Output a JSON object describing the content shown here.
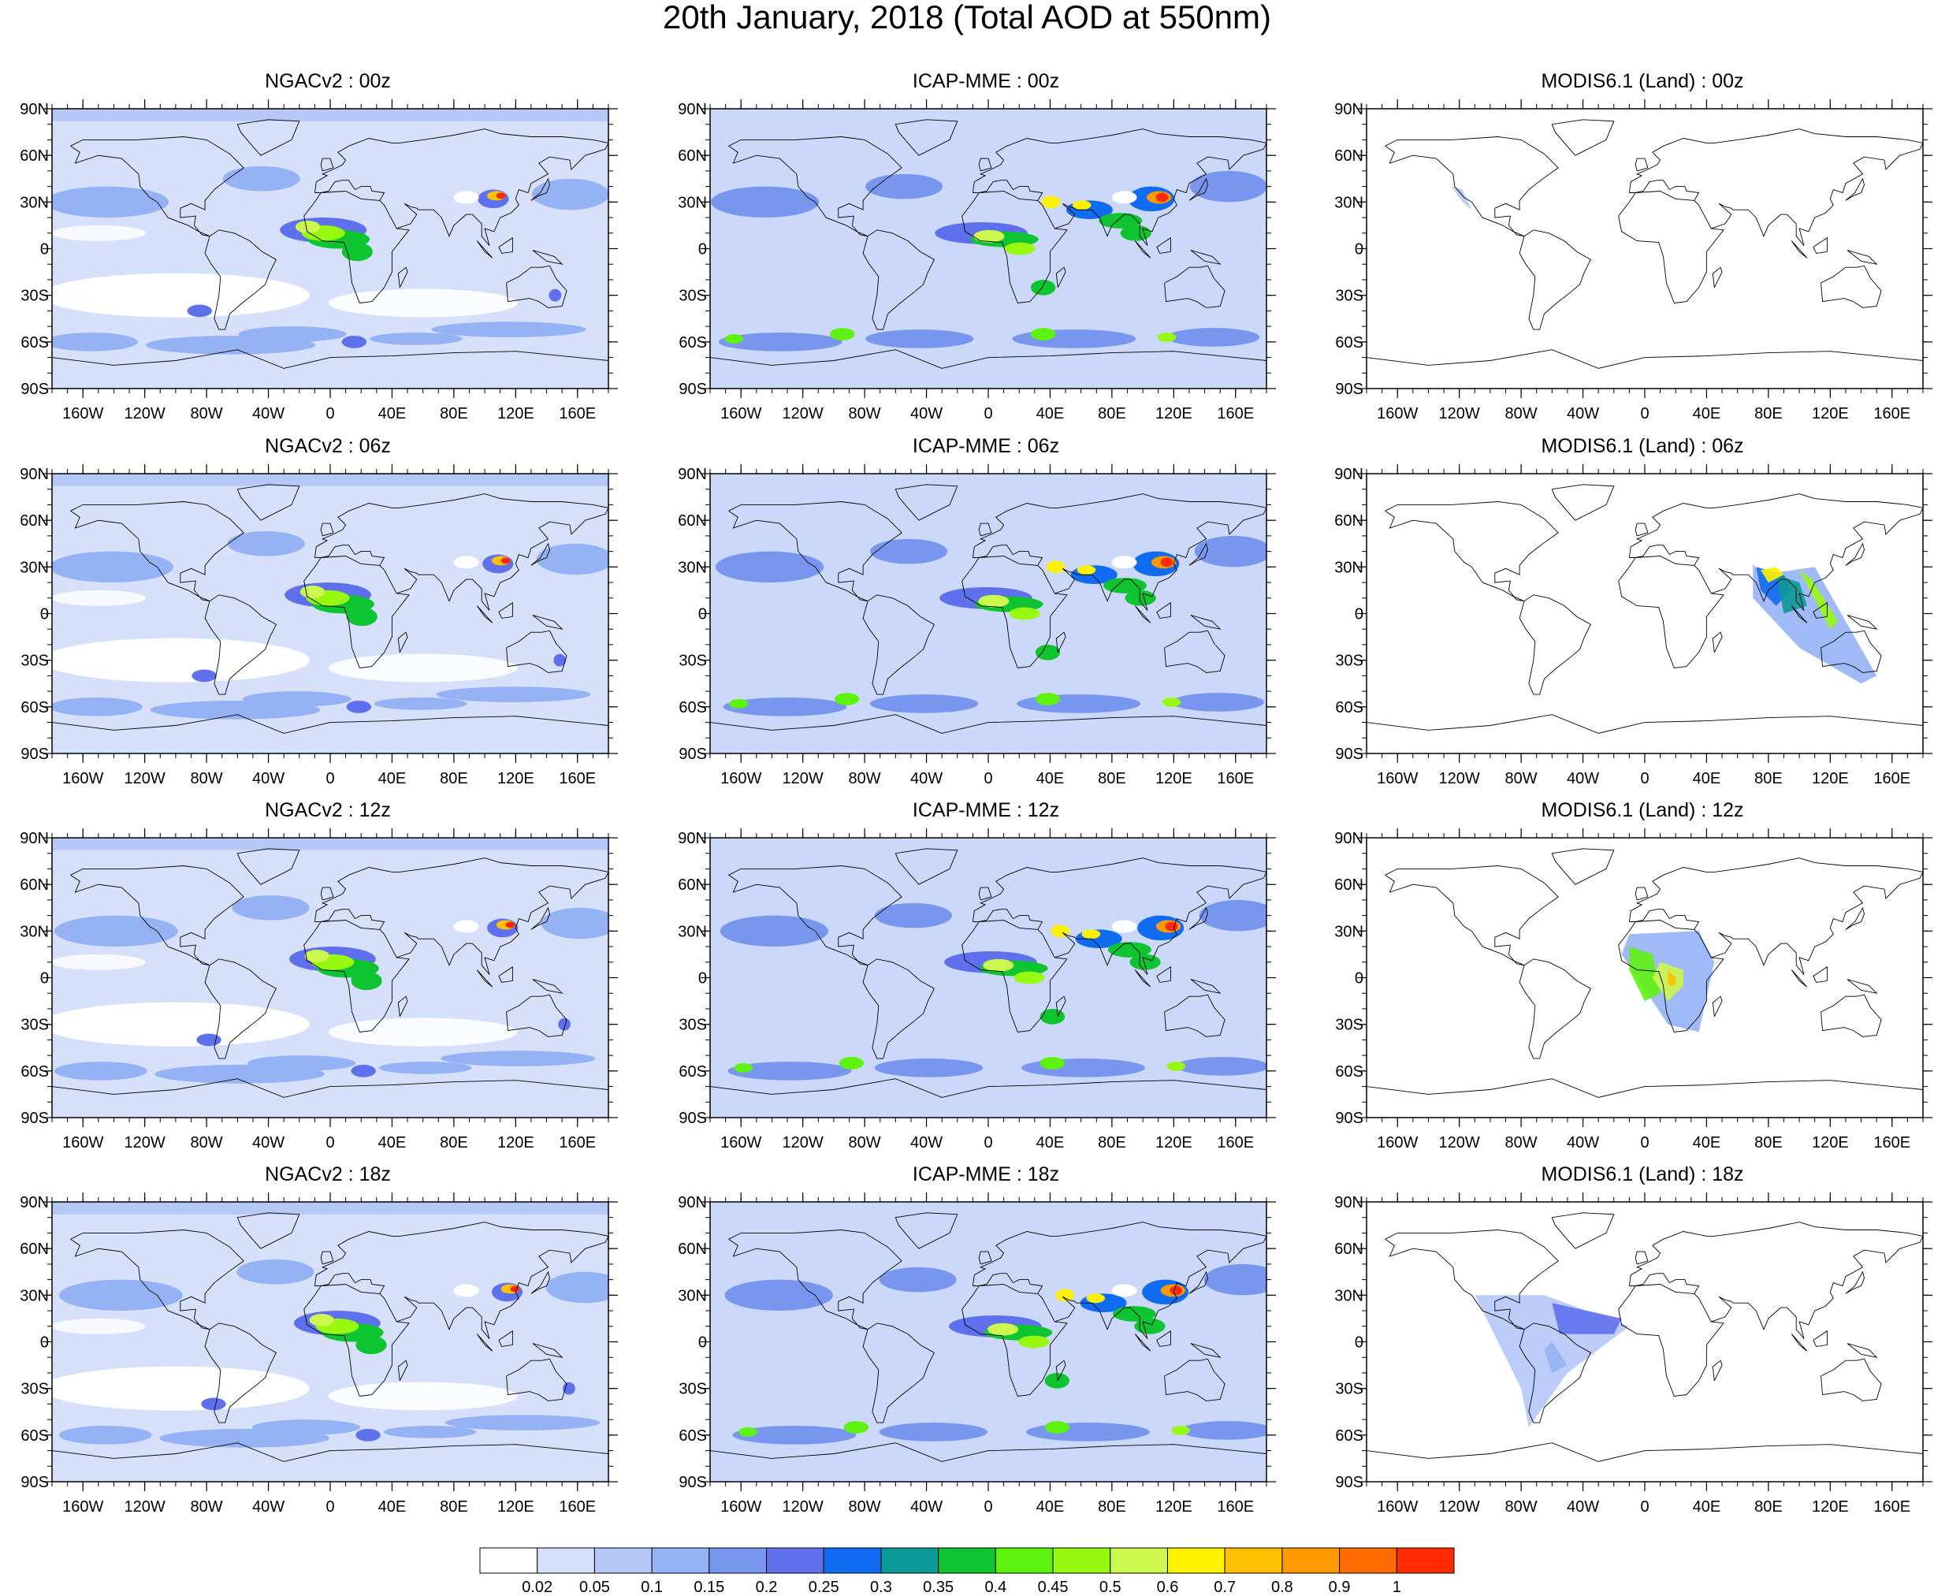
{
  "title": "20th January, 2018 (Total AOD at 550nm)",
  "panel_titles": [
    [
      "NGACv2 : 00z",
      "ICAP-MME : 00z",
      "MODIS6.1 (Land) : 00z"
    ],
    [
      "NGACv2 : 06z",
      "ICAP-MME : 06z",
      "MODIS6.1 (Land) : 06z"
    ],
    [
      "NGACv2 : 12z",
      "ICAP-MME : 12z",
      "MODIS6.1 (Land) : 12z"
    ],
    [
      "NGACv2 : 18z",
      "ICAP-MME : 18z",
      "MODIS6.1 (Land) : 18z"
    ]
  ],
  "axes": {
    "lon_labels": [
      "160W",
      "120W",
      "80W",
      "40W",
      "0",
      "40E",
      "80E",
      "120E",
      "160E"
    ],
    "lon_values": [
      -160,
      -120,
      -80,
      -40,
      0,
      40,
      80,
      120,
      160
    ],
    "lat_labels": [
      "90N",
      "60N",
      "30N",
      "0",
      "30S",
      "60S",
      "90S"
    ],
    "lat_values": [
      90,
      60,
      30,
      0,
      -30,
      -60,
      -90
    ],
    "lon_range": [
      -180,
      180
    ],
    "lat_range": [
      -90,
      90
    ]
  },
  "colorbar": {
    "colors": [
      "#ffffff",
      "#d6e0fb",
      "#b6c8f8",
      "#95b2f5",
      "#7996ef",
      "#5f70ec",
      "#0f6bf0",
      "#0c9a97",
      "#0ec431",
      "#5ef20f",
      "#98f910",
      "#ccf74d",
      "#fff200",
      "#ffc100",
      "#ff9900",
      "#ff6b00",
      "#ff2a00"
    ],
    "labels": [
      "0.02",
      "0.05",
      "0.1",
      "0.15",
      "0.2",
      "0.25",
      "0.3",
      "0.35",
      "0.4",
      "0.45",
      "0.5",
      "0.6",
      "0.7",
      "0.8",
      "0.9",
      "1"
    ]
  }
}
